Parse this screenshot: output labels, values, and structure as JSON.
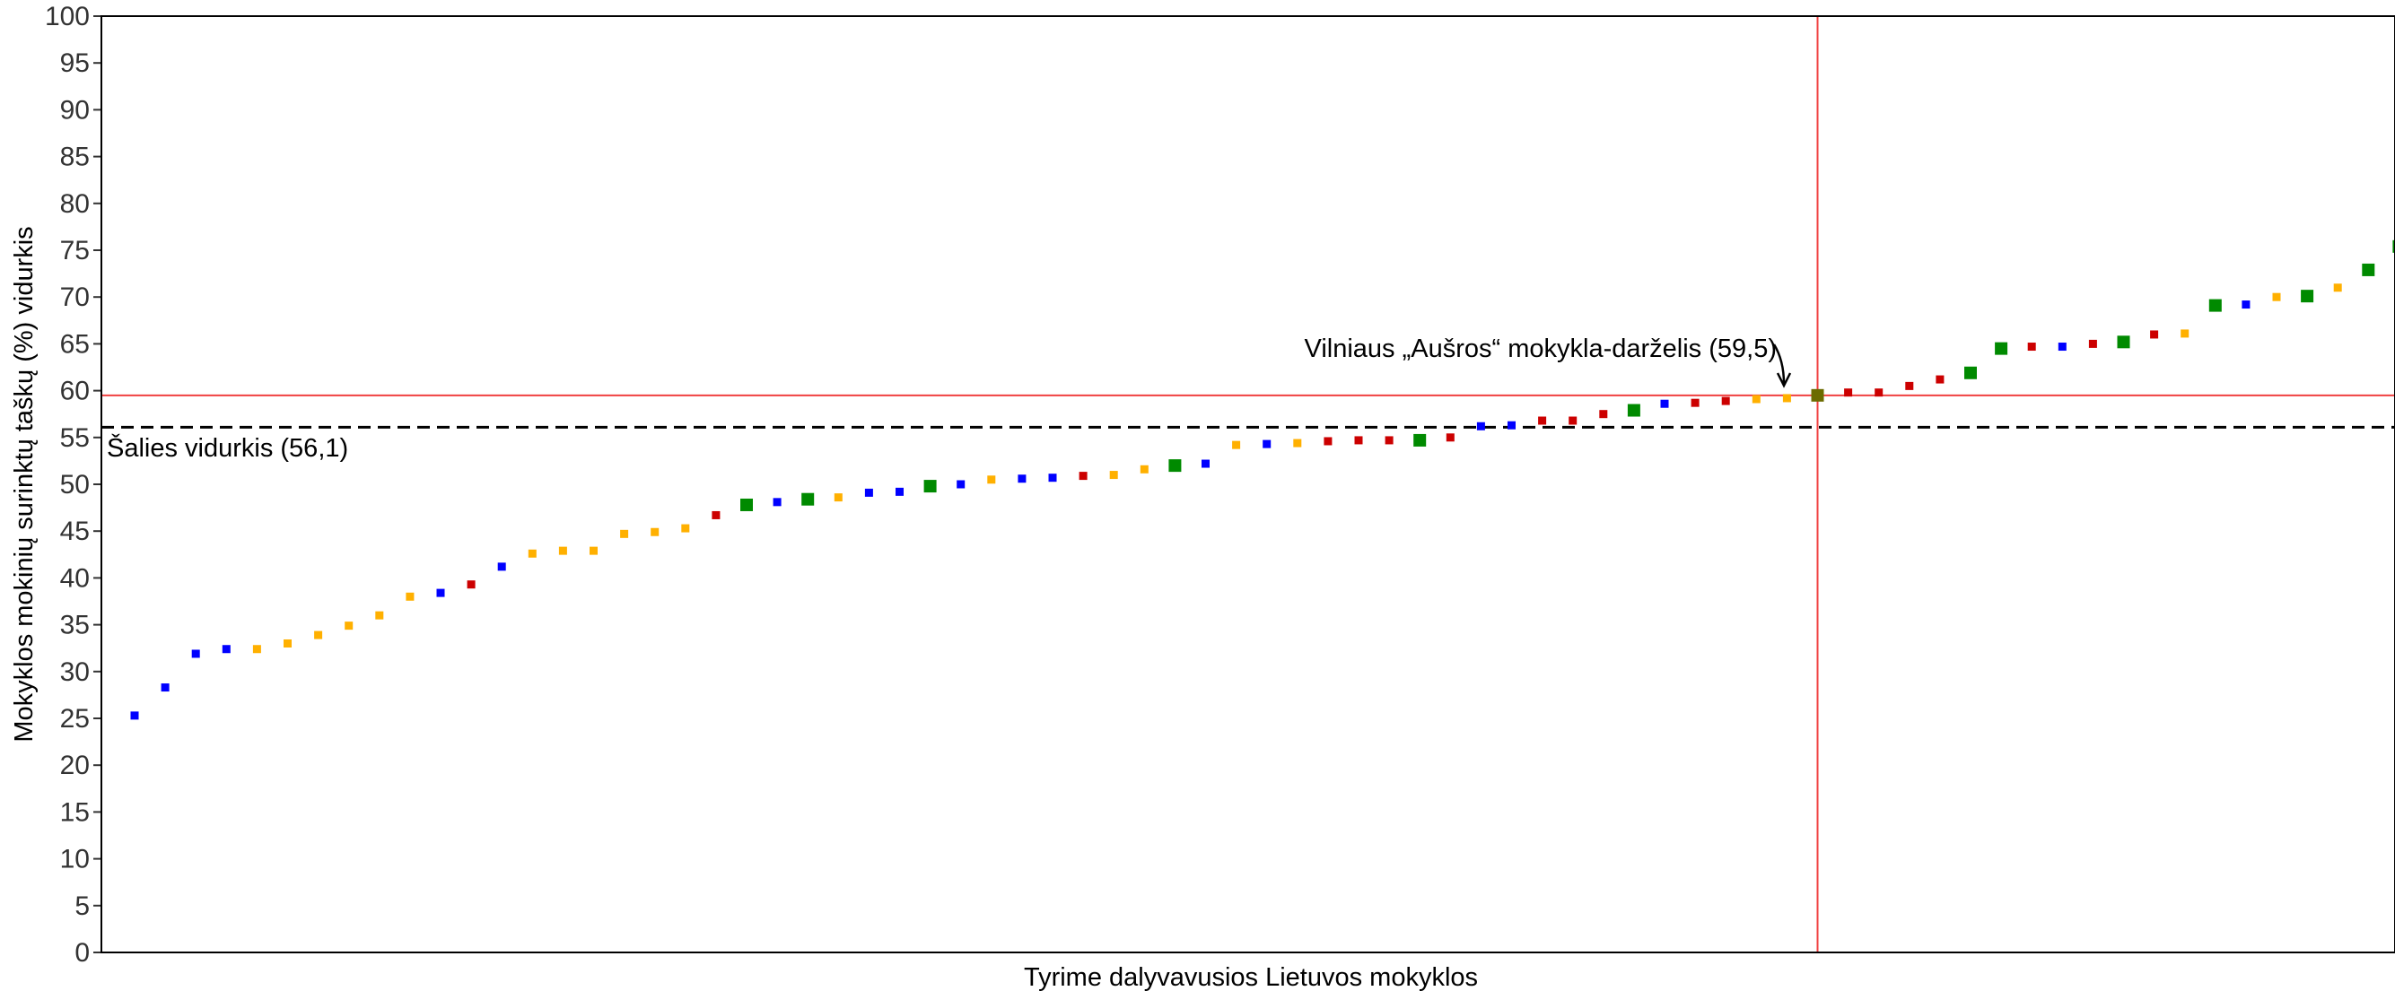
{
  "chart_data": {
    "type": "scatter",
    "xlabel": "Tyrime dalyvavusios Lietuvos mokyklos",
    "ylabel": "Mokyklos mokinių surinktų taškų (%) vidurkis",
    "ylim": [
      0,
      100
    ],
    "yticks": [
      0,
      5,
      10,
      15,
      20,
      25,
      30,
      35,
      40,
      45,
      50,
      55,
      60,
      65,
      70,
      75,
      80,
      85,
      90,
      95,
      100
    ],
    "grid": false,
    "national_average": {
      "label": "Šalies vidurkis (56,1)",
      "value": 56.1
    },
    "highlight": {
      "label": "Vilniaus „Aušros“ mokykla-darželis (59,5)",
      "index": 55,
      "value": 59.5
    },
    "colors": {
      "blue": "#0000ff",
      "orange": "#ffb000",
      "red": "#cc0000",
      "green": "#008a00",
      "highlight": "#6b6b00",
      "ref_line": "#f04040"
    },
    "values": [
      25.3,
      28.3,
      31.9,
      32.4,
      32.4,
      33.0,
      33.9,
      34.9,
      36.0,
      38.0,
      38.4,
      39.3,
      41.2,
      42.6,
      42.9,
      42.9,
      44.7,
      44.9,
      45.3,
      46.7,
      47.8,
      48.1,
      48.4,
      48.6,
      49.1,
      49.2,
      49.8,
      50.0,
      50.5,
      50.6,
      50.7,
      50.9,
      51.0,
      51.6,
      52.0,
      52.2,
      54.2,
      54.3,
      54.4,
      54.6,
      54.7,
      54.7,
      54.7,
      55.0,
      56.2,
      56.3,
      56.8,
      56.8,
      57.5,
      57.9,
      58.6,
      58.7,
      58.9,
      59.1,
      59.2,
      59.5,
      59.8,
      59.8,
      60.5,
      61.2,
      61.9,
      64.5,
      64.7,
      64.7,
      65.0,
      65.2,
      66.0,
      66.1,
      69.1,
      69.2,
      70.0,
      70.1,
      71.0,
      72.9,
      75.4
    ],
    "groups": [
      "blue",
      "blue",
      "blue",
      "blue",
      "orange",
      "orange",
      "orange",
      "orange",
      "orange",
      "orange",
      "blue",
      "red",
      "blue",
      "orange",
      "orange",
      "orange",
      "orange",
      "orange",
      "orange",
      "red",
      "green",
      "blue",
      "green",
      "orange",
      "blue",
      "blue",
      "green",
      "blue",
      "orange",
      "blue",
      "blue",
      "red",
      "orange",
      "orange",
      "green",
      "blue",
      "orange",
      "blue",
      "orange",
      "red",
      "red",
      "red",
      "green",
      "red",
      "blue",
      "blue",
      "red",
      "red",
      "red",
      "green",
      "blue",
      "red",
      "red",
      "orange",
      "orange",
      "highlight",
      "red",
      "red",
      "red",
      "red",
      "green",
      "green",
      "red",
      "blue",
      "red",
      "green",
      "red",
      "orange",
      "green",
      "blue",
      "orange",
      "green",
      "orange",
      "green",
      "green"
    ]
  }
}
